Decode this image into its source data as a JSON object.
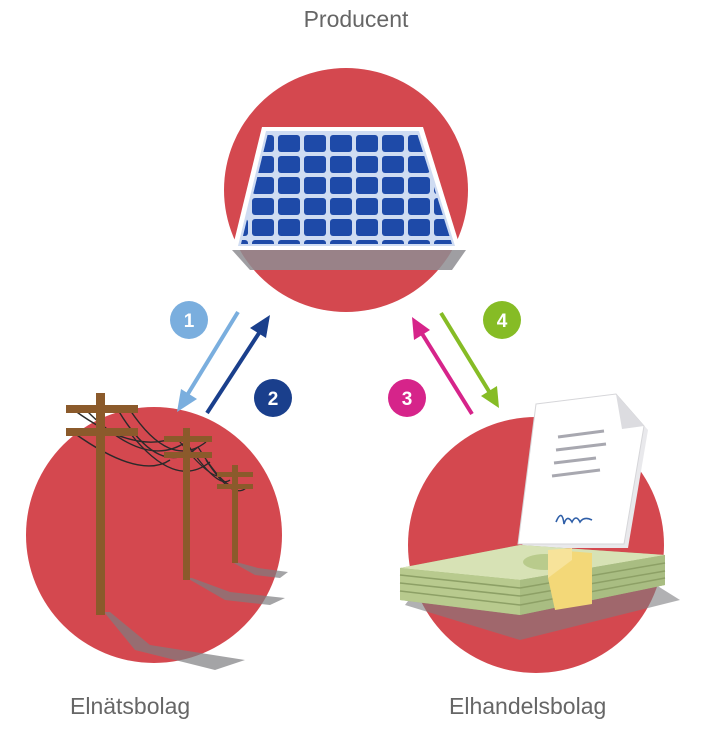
{
  "nodes": {
    "producer": {
      "label": "Producent",
      "icon": "solar-panel-icon"
    },
    "grid_company": {
      "label": "Elnätsbolag",
      "icon": "power-lines-icon"
    },
    "retail_company": {
      "label": "Elhandelsbolag",
      "icon": "money-and-contract-icon"
    }
  },
  "steps": [
    {
      "number": "1",
      "color": "#7aaede",
      "from": "producer",
      "to": "grid_company"
    },
    {
      "number": "2",
      "color": "#1a3f8c",
      "from": "grid_company",
      "to": "producer"
    },
    {
      "number": "3",
      "color": "#d6248a",
      "from": "retail_company",
      "to": "producer"
    },
    {
      "number": "4",
      "color": "#86bc25",
      "from": "producer",
      "to": "retail_company"
    }
  ],
  "colors": {
    "circle": "#d4484f",
    "label_text": "#666666",
    "panel_blue": "#1e4aa8",
    "pole_brown": "#8b5a2b",
    "money_green": "#c9d8a0",
    "money_band": "#f3d878"
  }
}
